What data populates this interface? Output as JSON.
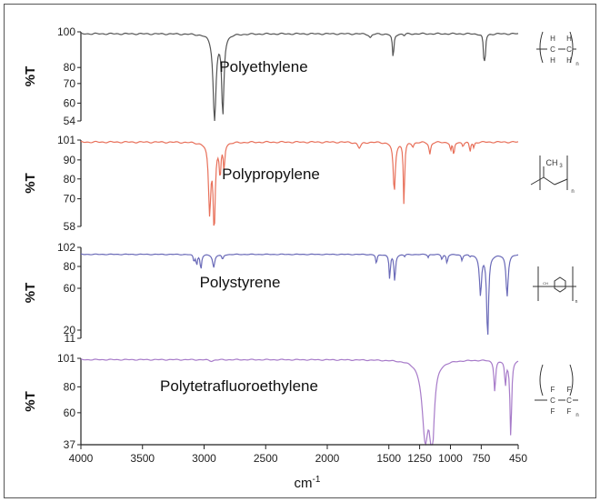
{
  "chart_data": {
    "type": "line",
    "xlabel": "cm",
    "xlabel_sup": "-1",
    "x_ticks": [
      4000,
      3500,
      3000,
      2500,
      2000,
      1500,
      1250,
      1000,
      750,
      450
    ],
    "x_tick_labels": [
      "4000",
      "3500",
      "3000",
      "2500",
      "2000",
      "1500",
      "1250",
      "1000",
      "750",
      "450"
    ],
    "xlim": [
      4000,
      450
    ],
    "panels": [
      {
        "name": "Polyethylene",
        "ylabel": "%T",
        "color": "#555555",
        "y_ticks": [
          "100",
          "80",
          "70",
          "60",
          "54"
        ],
        "ylim": [
          54,
          100
        ],
        "baseline": 99,
        "peaks": [
          {
            "x": 2915,
            "y": 54,
            "w": 14
          },
          {
            "x": 2848,
            "y": 58,
            "w": 11
          },
          {
            "x": 1650,
            "y": 97,
            "w": 12
          },
          {
            "x": 1465,
            "y": 86,
            "w": 7
          },
          {
            "x": 1375,
            "y": 98,
            "w": 6
          },
          {
            "x": 720,
            "y": 85,
            "w": 6
          },
          {
            "x": 730,
            "y": 90,
            "w": 5
          }
        ],
        "structure": "polyethylene"
      },
      {
        "name": "Polypropylene",
        "ylabel": "%T",
        "color": "#e8705a",
        "y_ticks": [
          "101",
          "90",
          "80",
          "70",
          "58"
        ],
        "ylim": [
          58,
          101
        ],
        "baseline": 100,
        "peaks": [
          {
            "x": 2955,
            "y": 66,
            "w": 11
          },
          {
            "x": 2918,
            "y": 58,
            "w": 10
          },
          {
            "x": 2870,
            "y": 84,
            "w": 8
          },
          {
            "x": 2838,
            "y": 87,
            "w": 7
          },
          {
            "x": 1740,
            "y": 97,
            "w": 15
          },
          {
            "x": 1456,
            "y": 75,
            "w": 10
          },
          {
            "x": 1377,
            "y": 68,
            "w": 6
          },
          {
            "x": 1305,
            "y": 98,
            "w": 8
          },
          {
            "x": 1167,
            "y": 94,
            "w": 8
          },
          {
            "x": 998,
            "y": 96,
            "w": 6
          },
          {
            "x": 973,
            "y": 93,
            "w": 6
          },
          {
            "x": 898,
            "y": 98,
            "w": 6
          },
          {
            "x": 841,
            "y": 95,
            "w": 6
          },
          {
            "x": 810,
            "y": 97,
            "w": 5
          }
        ],
        "structure": "polypropylene"
      },
      {
        "name": "Polystyrene",
        "ylabel": "%T",
        "color": "#6a6ab8",
        "y_ticks": [
          "102",
          "80",
          "60",
          "20",
          "11"
        ],
        "ylim": [
          11,
          102
        ],
        "baseline": 95,
        "peaks": [
          {
            "x": 3082,
            "y": 88,
            "w": 6
          },
          {
            "x": 3060,
            "y": 85,
            "w": 6
          },
          {
            "x": 3026,
            "y": 80,
            "w": 7
          },
          {
            "x": 2922,
            "y": 82,
            "w": 10
          },
          {
            "x": 2850,
            "y": 90,
            "w": 8
          },
          {
            "x": 1601,
            "y": 85,
            "w": 6
          },
          {
            "x": 1493,
            "y": 70,
            "w": 6
          },
          {
            "x": 1452,
            "y": 68,
            "w": 7
          },
          {
            "x": 1372,
            "y": 93,
            "w": 5
          },
          {
            "x": 1181,
            "y": 92,
            "w": 5
          },
          {
            "x": 1069,
            "y": 90,
            "w": 6
          },
          {
            "x": 1028,
            "y": 86,
            "w": 6
          },
          {
            "x": 906,
            "y": 89,
            "w": 6
          },
          {
            "x": 842,
            "y": 93,
            "w": 5
          },
          {
            "x": 756,
            "y": 55,
            "w": 10
          },
          {
            "x": 698,
            "y": 11,
            "w": 9
          },
          {
            "x": 540,
            "y": 53,
            "w": 10
          }
        ],
        "structure": "polystyrene"
      },
      {
        "name": "Polytetrafluoroethylene",
        "ylabel": "%T",
        "color": "#a77bc9",
        "y_ticks": [
          "101",
          "80",
          "60",
          "37"
        ],
        "ylim": [
          37,
          101
        ],
        "baseline": 100,
        "peaks": [
          {
            "x": 2940,
            "y": 99,
            "w": 20
          },
          {
            "x": 1205,
            "y": 45,
            "w": 30
          },
          {
            "x": 1150,
            "y": 37,
            "w": 20
          },
          {
            "x": 640,
            "y": 77,
            "w": 8
          },
          {
            "x": 554,
            "y": 82,
            "w": 7
          },
          {
            "x": 510,
            "y": 43,
            "w": 8
          }
        ],
        "structure": "ptfe"
      }
    ]
  }
}
